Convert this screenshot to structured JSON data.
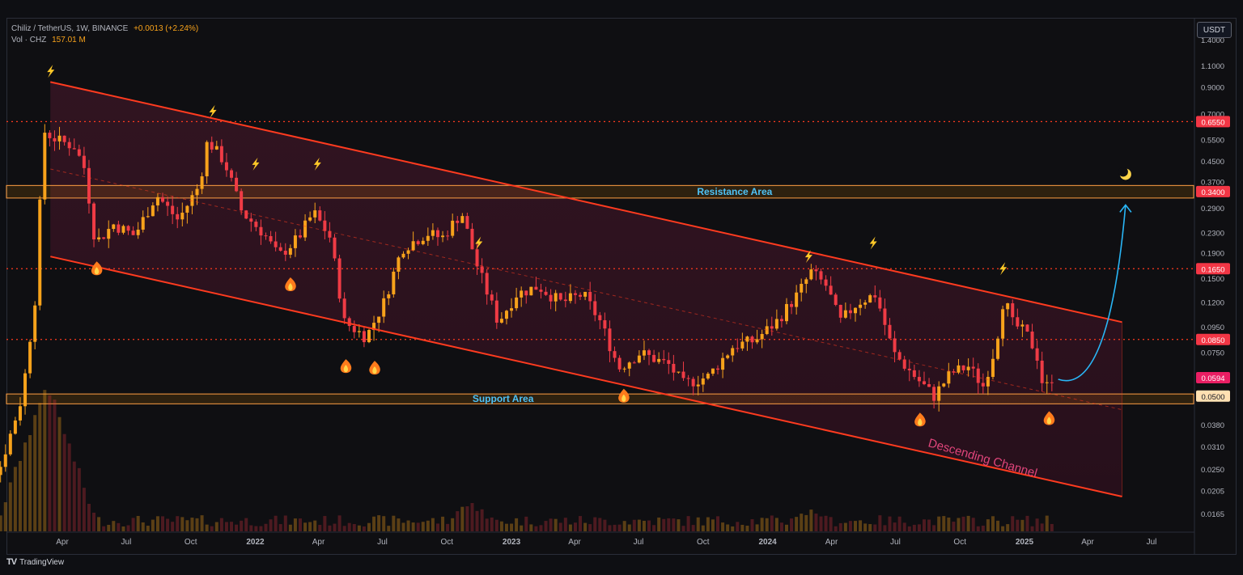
{
  "header": {
    "symbol": "Chiliz / TetherUS, 1W, BINANCE",
    "change": "+0.0013 (+2.24%)",
    "volume_label": "Vol · CHZ",
    "volume_value": "157.01 M",
    "currency": "USDT"
  },
  "footer": {
    "logo_icon": "tradingview-logo-icon",
    "brand": "TradingView"
  },
  "colors": {
    "up": "#f7a21b",
    "down": "#ef3b45",
    "channel": "#ff3b1f",
    "level_line": "#ff3b1f",
    "zone": "#ff9f43",
    "annotation_text": "#4fc3f7",
    "arrow": "#29b6f6",
    "channel_label": "#e0457b",
    "price_badge_red": "#f23645",
    "price_badge_current": "#e91e63"
  },
  "chart_data": {
    "type": "candlestick",
    "scale": "log",
    "ylim": [
      0.0145,
      1.6
    ],
    "x_axis_ticks": [
      {
        "label": "Apr",
        "date": "2021-04-01"
      },
      {
        "label": "Jul",
        "date": "2021-07-01"
      },
      {
        "label": "Oct",
        "date": "2021-10-01"
      },
      {
        "label": "2022",
        "date": "2022-01-01"
      },
      {
        "label": "Apr",
        "date": "2022-04-01"
      },
      {
        "label": "Jul",
        "date": "2022-07-01"
      },
      {
        "label": "Oct",
        "date": "2022-10-01"
      },
      {
        "label": "2023",
        "date": "2023-01-01"
      },
      {
        "label": "Apr",
        "date": "2023-04-01"
      },
      {
        "label": "Jul",
        "date": "2023-07-01"
      },
      {
        "label": "Oct",
        "date": "2023-10-01"
      },
      {
        "label": "2024",
        "date": "2024-01-01"
      },
      {
        "label": "Apr",
        "date": "2024-04-01"
      },
      {
        "label": "Jul",
        "date": "2024-07-01"
      },
      {
        "label": "Oct",
        "date": "2024-10-01"
      },
      {
        "label": "2025",
        "date": "2025-01-01"
      },
      {
        "label": "Apr",
        "date": "2025-04-01"
      },
      {
        "label": "Jul",
        "date": "2025-07-01"
      }
    ],
    "y_axis_ticks": [
      "1.4000",
      "1.1000",
      "0.9000",
      "0.7000",
      "0.5500",
      "0.4500",
      "0.3700",
      "0.2900",
      "0.2300",
      "0.1900",
      "0.1500",
      "0.1200",
      "0.0950",
      "0.0750",
      "0.0380",
      "0.0310",
      "0.0250",
      "0.0205",
      "0.0165"
    ],
    "price_badges": [
      {
        "label": "0.6550",
        "value": 0.655,
        "style": "red"
      },
      {
        "label": "0.3400",
        "value": 0.34,
        "style": "red"
      },
      {
        "label": "0.1650",
        "value": 0.165,
        "style": "red"
      },
      {
        "label": "0.0850",
        "value": 0.085,
        "style": "red"
      },
      {
        "label": "0.0594",
        "value": 0.0594,
        "style": "current"
      },
      {
        "label": "0.0500",
        "value": 0.05,
        "style": "zone"
      }
    ],
    "horizontal_levels": [
      0.655,
      0.165,
      0.085
    ],
    "zones": [
      {
        "label": "Resistance Area",
        "low": 0.32,
        "high": 0.36,
        "label_date": "2023-11-15"
      },
      {
        "label": "Support Area",
        "low": 0.0465,
        "high": 0.051,
        "label_date": "2022-12-20"
      }
    ],
    "channel": {
      "label": "Descending Channel",
      "upper": [
        {
          "date": "2021-03-15",
          "value": 0.95
        },
        {
          "date": "2025-05-20",
          "value": 0.1
        }
      ],
      "lower": [
        {
          "date": "2021-03-15",
          "value": 0.185
        },
        {
          "date": "2025-05-20",
          "value": 0.0195
        }
      ],
      "mid": [
        {
          "date": "2021-03-15",
          "value": 0.42
        },
        {
          "date": "2025-05-20",
          "value": 0.044
        }
      ]
    },
    "projection_arrow": [
      {
        "date": "2025-02-18",
        "value": 0.0585
      },
      {
        "date": "2025-05-01",
        "value": 0.085
      },
      {
        "date": "2025-05-25",
        "value": 0.3
      }
    ],
    "emoji_marks": [
      {
        "icon": "lightning-icon",
        "date": "2021-03-15",
        "value": 1.05
      },
      {
        "icon": "lightning-icon",
        "date": "2021-11-01",
        "value": 0.72
      },
      {
        "icon": "lightning-icon",
        "date": "2022-01-01",
        "value": 0.44
      },
      {
        "icon": "lightning-icon",
        "date": "2022-03-30",
        "value": 0.44
      },
      {
        "icon": "lightning-icon",
        "date": "2022-11-15",
        "value": 0.21
      },
      {
        "icon": "lightning-icon",
        "date": "2024-02-28",
        "value": 0.185
      },
      {
        "icon": "lightning-icon",
        "date": "2024-05-30",
        "value": 0.21
      },
      {
        "icon": "lightning-icon",
        "date": "2024-12-01",
        "value": 0.165
      },
      {
        "icon": "fire-icon",
        "date": "2021-05-20",
        "value": 0.165
      },
      {
        "icon": "fire-icon",
        "date": "2022-02-20",
        "value": 0.142
      },
      {
        "icon": "fire-icon",
        "date": "2022-05-10",
        "value": 0.066
      },
      {
        "icon": "fire-icon",
        "date": "2022-06-20",
        "value": 0.065
      },
      {
        "icon": "fire-icon",
        "date": "2023-06-10",
        "value": 0.05
      },
      {
        "icon": "fire-icon",
        "date": "2024-08-05",
        "value": 0.04
      },
      {
        "icon": "fire-icon",
        "date": "2025-02-05",
        "value": 0.0405
      },
      {
        "icon": "moon-icon",
        "date": "2025-05-25",
        "value": 0.4
      }
    ],
    "price_path": [
      {
        "date": "2020-11-15",
        "value": 0.019
      },
      {
        "date": "2021-01-10",
        "value": 0.026
      },
      {
        "date": "2021-02-10",
        "value": 0.05
      },
      {
        "date": "2021-03-01",
        "value": 0.13
      },
      {
        "date": "2021-03-12",
        "value": 0.6
      },
      {
        "date": "2021-04-01",
        "value": 0.55
      },
      {
        "date": "2021-04-25",
        "value": 0.52
      },
      {
        "date": "2021-05-10",
        "value": 0.42
      },
      {
        "date": "2021-05-25",
        "value": 0.21
      },
      {
        "date": "2021-06-20",
        "value": 0.25
      },
      {
        "date": "2021-07-20",
        "value": 0.225
      },
      {
        "date": "2021-08-20",
        "value": 0.33
      },
      {
        "date": "2021-09-20",
        "value": 0.26
      },
      {
        "date": "2021-10-20",
        "value": 0.36
      },
      {
        "date": "2021-11-01",
        "value": 0.55
      },
      {
        "date": "2021-11-25",
        "value": 0.45
      },
      {
        "date": "2021-12-20",
        "value": 0.28
      },
      {
        "date": "2022-01-20",
        "value": 0.23
      },
      {
        "date": "2022-02-10",
        "value": 0.185
      },
      {
        "date": "2022-03-10",
        "value": 0.22
      },
      {
        "date": "2022-04-01",
        "value": 0.28
      },
      {
        "date": "2022-04-25",
        "value": 0.22
      },
      {
        "date": "2022-05-15",
        "value": 0.1
      },
      {
        "date": "2022-06-15",
        "value": 0.087
      },
      {
        "date": "2022-07-10",
        "value": 0.12
      },
      {
        "date": "2022-08-05",
        "value": 0.2
      },
      {
        "date": "2022-09-10",
        "value": 0.23
      },
      {
        "date": "2022-10-01",
        "value": 0.22
      },
      {
        "date": "2022-10-29",
        "value": 0.28
      },
      {
        "date": "2022-11-20",
        "value": 0.17
      },
      {
        "date": "2022-12-20",
        "value": 0.1
      },
      {
        "date": "2023-01-15",
        "value": 0.13
      },
      {
        "date": "2023-02-15",
        "value": 0.14
      },
      {
        "date": "2023-03-20",
        "value": 0.12
      },
      {
        "date": "2023-04-20",
        "value": 0.13
      },
      {
        "date": "2023-05-15",
        "value": 0.1
      },
      {
        "date": "2023-06-10",
        "value": 0.065
      },
      {
        "date": "2023-07-10",
        "value": 0.075
      },
      {
        "date": "2023-08-20",
        "value": 0.067
      },
      {
        "date": "2023-09-10",
        "value": 0.056
      },
      {
        "date": "2023-10-15",
        "value": 0.06
      },
      {
        "date": "2023-11-20",
        "value": 0.08
      },
      {
        "date": "2023-12-20",
        "value": 0.084
      },
      {
        "date": "2024-01-20",
        "value": 0.1
      },
      {
        "date": "2024-02-20",
        "value": 0.13
      },
      {
        "date": "2024-03-10",
        "value": 0.16
      },
      {
        "date": "2024-04-01",
        "value": 0.14
      },
      {
        "date": "2024-04-20",
        "value": 0.1
      },
      {
        "date": "2024-05-15",
        "value": 0.12
      },
      {
        "date": "2024-06-10",
        "value": 0.13
      },
      {
        "date": "2024-07-05",
        "value": 0.075
      },
      {
        "date": "2024-08-05",
        "value": 0.06
      },
      {
        "date": "2024-09-01",
        "value": 0.05
      },
      {
        "date": "2024-09-25",
        "value": 0.062
      },
      {
        "date": "2024-10-20",
        "value": 0.066
      },
      {
        "date": "2024-11-10",
        "value": 0.055
      },
      {
        "date": "2024-11-28",
        "value": 0.08
      },
      {
        "date": "2024-12-10",
        "value": 0.13
      },
      {
        "date": "2024-12-20",
        "value": 0.1
      },
      {
        "date": "2025-01-10",
        "value": 0.09
      },
      {
        "date": "2025-01-25",
        "value": 0.075
      },
      {
        "date": "2025-02-05",
        "value": 0.052
      },
      {
        "date": "2025-02-15",
        "value": 0.0594
      }
    ]
  }
}
